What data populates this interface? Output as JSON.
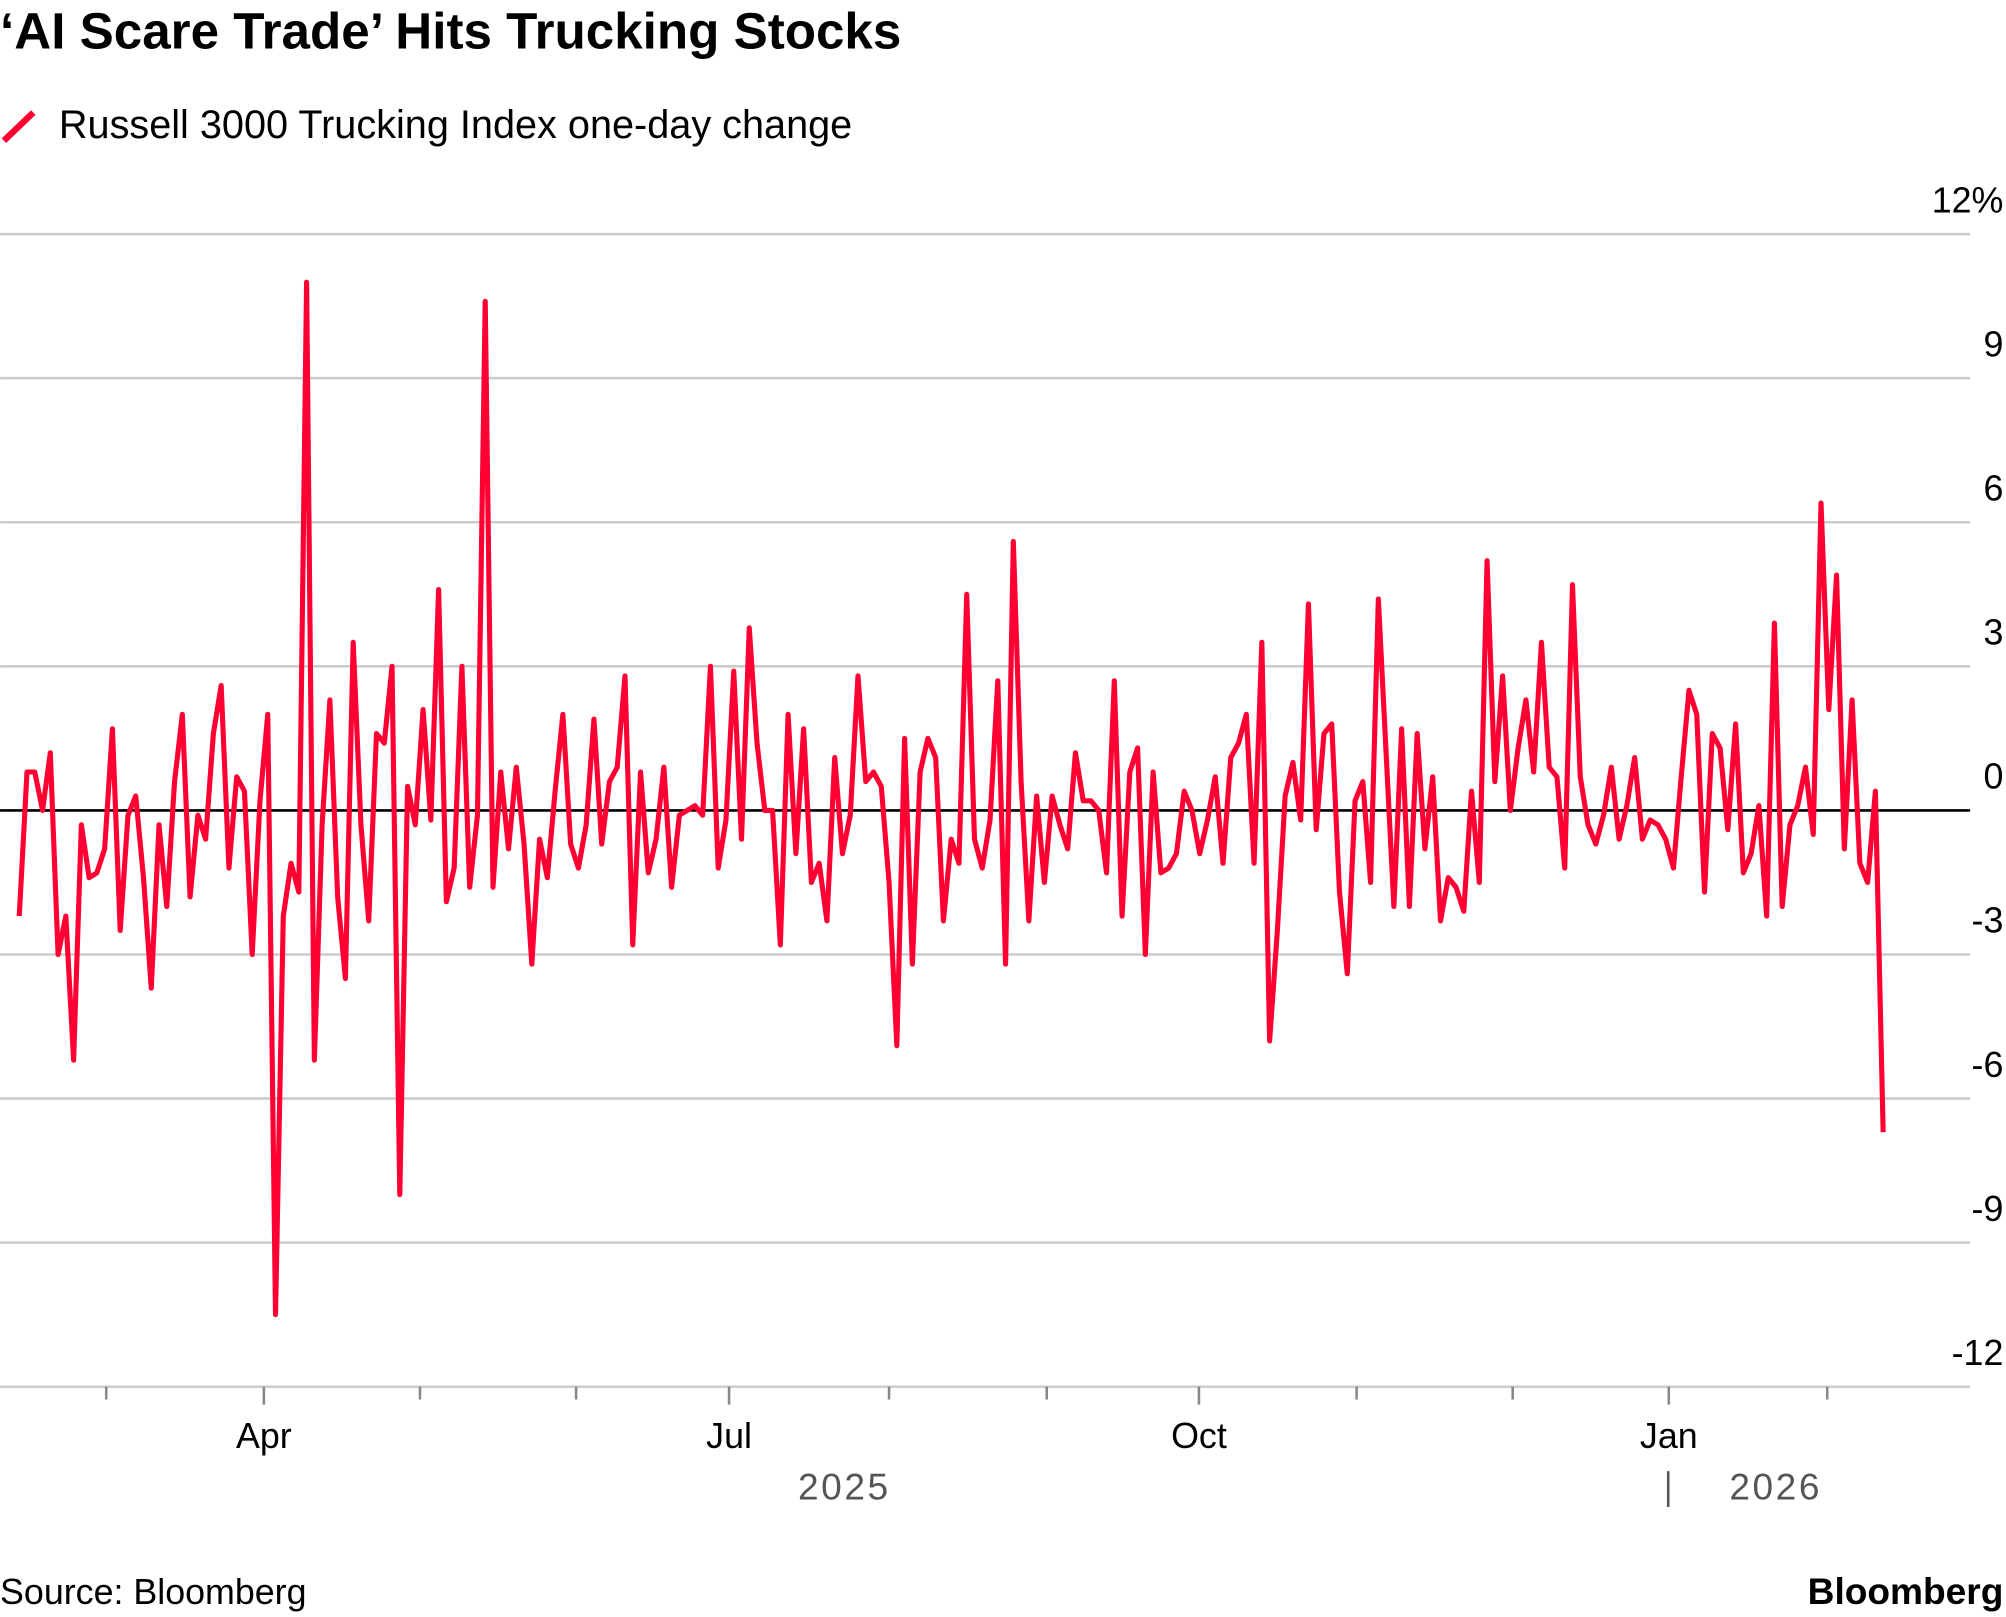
{
  "chart_data": {
    "type": "line",
    "title": "‘AI Scare Trade’ Hits Trucking Stocks",
    "source": "Source: Bloomberg",
    "brand": "Bloomberg",
    "series": [
      {
        "name": "Russell 3000 Trucking Index one-day change",
        "color": "#ff0033",
        "values": [
          -2.2,
          0.8,
          0.8,
          0,
          1.2,
          -3,
          -2.2,
          -5.2,
          -0.3,
          -1.4,
          -1.3,
          -0.8,
          1.7,
          -2.5,
          -0.1,
          0.3,
          -1.4,
          -3.7,
          -0.3,
          -2,
          0.6,
          2,
          -1.8,
          -0.1,
          -0.6,
          1.6,
          2.6,
          -1.2,
          0.7,
          0.4,
          -3,
          0.2,
          2,
          -10.5,
          -2.2,
          -1.1,
          -1.7,
          11,
          -5.2,
          -0.3,
          2.3,
          -1.8,
          -3.5,
          3.5,
          -0.3,
          -2.3,
          1.6,
          1.4,
          3,
          -8,
          0.5,
          -0.3,
          2.1,
          -0.2,
          4.6,
          -1.9,
          -1.2,
          3,
          -1.6,
          -0.1,
          10.6,
          -1.6,
          0.8,
          -0.8,
          0.9,
          -0.7,
          -3.2,
          -0.6,
          -1.4,
          0.4,
          2,
          -0.7,
          -1.2,
          -0.3,
          1.9,
          -0.7,
          0.6,
          0.9,
          2.8,
          -2.8,
          0.8,
          -1.3,
          -0.6,
          0.9,
          -1.6,
          -0.1,
          0,
          0.1,
          -0.1,
          3,
          -1.2,
          -0.2,
          2.9,
          -0.6,
          3.8,
          1.4,
          0,
          0,
          -2.8,
          2,
          -0.9,
          1.7,
          -1.5,
          -1.1,
          -2.3,
          1.1,
          -0.9,
          -0.1,
          2.8,
          0.6,
          0.8,
          0.5,
          -1.5,
          -4.9,
          1.5,
          -3.2,
          0.8,
          1.5,
          1.1,
          -2.3,
          -0.6,
          -1.1,
          4.5,
          -0.6,
          -1.2,
          -0.2,
          2.7,
          -3.2,
          5.6,
          0.6,
          -2.3,
          0.3,
          -1.5,
          0.3,
          -0.3,
          -0.8,
          1.2,
          0.2,
          0.2,
          0,
          -1.3,
          2.7,
          -2.2,
          0.8,
          1.3,
          -3,
          0.8,
          -1.3,
          -1.2,
          -0.9,
          0.4,
          0,
          -0.9,
          -0.2,
          0.7,
          -1.1,
          1.1,
          1.4,
          2,
          -1.1,
          3.5,
          -4.8,
          -2.5,
          0.3,
          1,
          -0.2,
          4.3,
          -0.4,
          1.6,
          1.8,
          -1.7,
          -3.4,
          0.2,
          0.6,
          -1.5,
          4.4,
          1.2,
          -2,
          1.7,
          -2,
          1.6,
          -0.8,
          0.7,
          -2.3,
          -1.4,
          -1.6,
          -2.1,
          0.4,
          -1.5,
          5.2,
          0.6,
          2.8,
          0,
          1.3,
          2.3,
          0.8,
          3.5,
          0.9,
          0.7,
          -1.2,
          4.7,
          0.7,
          -0.3,
          -0.7,
          -0.1,
          0.9,
          -0.6,
          0.1,
          1.1,
          -0.6,
          -0.2,
          -0.3,
          -0.6,
          -1.2,
          0.7,
          2.5,
          2,
          -1.7,
          1.6,
          1.3,
          -0.4,
          1.8,
          -1.3,
          -0.9,
          0.1,
          -2.2,
          3.9,
          -2,
          -0.3,
          0.1,
          0.9,
          -0.5,
          6.4,
          2.1,
          4.9,
          -0.8,
          2.3,
          -1.1,
          -1.5,
          0.4,
          -6.7
        ]
      }
    ],
    "xlim": [
      -2.47,
      251.2
    ],
    "xticks": [
      {
        "value": 31.5,
        "label": "Apr"
      },
      {
        "value": 91.4,
        "label": "Jul"
      },
      {
        "value": 151.9,
        "label": "Oct"
      },
      {
        "value": 212.4,
        "label": "Jan"
      }
    ],
    "xminorticks": [
      11.2,
      51.6,
      71.7,
      112,
      132.3,
      172.2,
      192.3,
      232.8
    ],
    "years": [
      "2025",
      "2026"
    ],
    "ylim": [
      -12,
      12
    ],
    "yticks": [
      -12,
      -9,
      -6,
      -3,
      0,
      3,
      6,
      9,
      {
        "value": 12,
        "label": "12%"
      }
    ],
    "grid": true
  }
}
